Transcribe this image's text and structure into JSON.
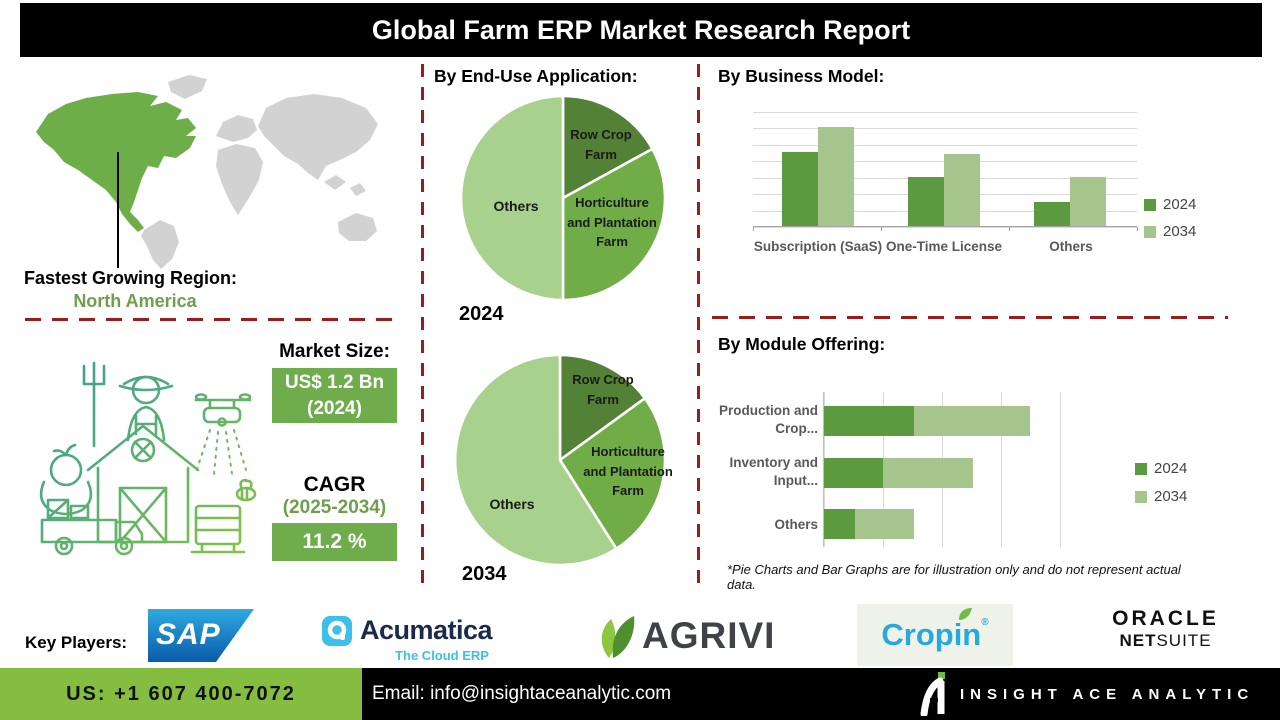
{
  "title": "Global Farm ERP Market Research Report",
  "region": {
    "label": "Fastest Growing Region:",
    "value": "North America"
  },
  "market_size": {
    "label": "Market Size:",
    "value_line1": "US$ 1.2 Bn",
    "value_line2": "(2024)",
    "cagr_label": "CAGR",
    "cagr_period": "(2025-2034)",
    "cagr_value": "11.2 %"
  },
  "sections": {
    "end_use": "By End-Use Application:",
    "business_model": "By Business Model:",
    "module_offering": "By Module Offering:"
  },
  "footnote": "*Pie Charts and Bar Graphs are for illustration only and do not represent actual data.",
  "key_players": {
    "label": "Key Players:",
    "sap": "SAP",
    "acumatica_name": "Acumatica",
    "acumatica_tagline": "The Cloud ERP",
    "agrivi": "AGRIVI",
    "cropin": "Cropin",
    "cropin_reg": "®",
    "netsuite_line1": "ORACLE",
    "netsuite_line2a": "NET",
    "netsuite_line2b": "SUITE"
  },
  "footer": {
    "phone": "US: +1 607 400-7072",
    "email": "Email: info@insightaceanalytic.com",
    "brand": "INSIGHT ACE ANALYTIC"
  },
  "colors": {
    "pie_dark_green": "#538135",
    "pie_mid_green": "#70AD47",
    "pie_light_green": "#A9D18E",
    "bar_2024": "#5B9A3F",
    "bar_2034": "#A6C58C",
    "accent_box_green": "#6FAC4C",
    "map_highlight_green": "#6DAE49",
    "map_land_gray": "#D2D2D2",
    "dashed_line_red": "#9E1B1B",
    "footer_green": "#84BD3F",
    "title_bg": "#000000"
  },
  "chart_data": [
    {
      "type": "pie",
      "title": "By End-Use Application:",
      "year": "2024",
      "note": "illustrative only",
      "slices": [
        {
          "label": "Row Crop Farm",
          "value": 17,
          "color": "#538135"
        },
        {
          "label": "Horticulture and Plantation Farm",
          "value": 33,
          "color": "#70AD47"
        },
        {
          "label": "Others",
          "value": 50,
          "color": "#A9D18E"
        }
      ]
    },
    {
      "type": "pie",
      "title": "By End-Use Application:",
      "year": "2034",
      "note": "illustrative only",
      "slices": [
        {
          "label": "Row Crop Farm",
          "value": 15,
          "color": "#538135"
        },
        {
          "label": "Horticulture and Plantation Farm",
          "value": 26,
          "color": "#70AD47"
        },
        {
          "label": "Others",
          "value": 59,
          "color": "#A9D18E"
        }
      ]
    },
    {
      "type": "bar",
      "title": "By Business Model:",
      "orientation": "vertical",
      "categories": [
        "Subscription (SaaS)",
        "One-Time License",
        "Others"
      ],
      "series": [
        {
          "name": "2024",
          "color": "#5B9A3F",
          "values": [
            64,
            43,
            21
          ]
        },
        {
          "name": "2034",
          "color": "#A6C58C",
          "values": [
            86,
            63,
            43
          ]
        }
      ],
      "ylim": [
        0,
        100
      ],
      "grid": true,
      "legend_position": "right",
      "note": "illustrative only, no numeric axis labels shown"
    },
    {
      "type": "bar",
      "title": "By Module Offering:",
      "orientation": "horizontal",
      "stacked": true,
      "categories": [
        "Production and Crop...",
        "Inventory and Input...",
        "Others"
      ],
      "series": [
        {
          "name": "2024",
          "color": "#5B9A3F",
          "values": [
            35,
            23,
            12
          ]
        },
        {
          "name": "2034",
          "color": "#A6C58C",
          "values": [
            45,
            35,
            23
          ]
        }
      ],
      "xlim": [
        0,
        100
      ],
      "grid": true,
      "legend_position": "right",
      "note": "illustrative only, no numeric axis labels shown"
    }
  ]
}
